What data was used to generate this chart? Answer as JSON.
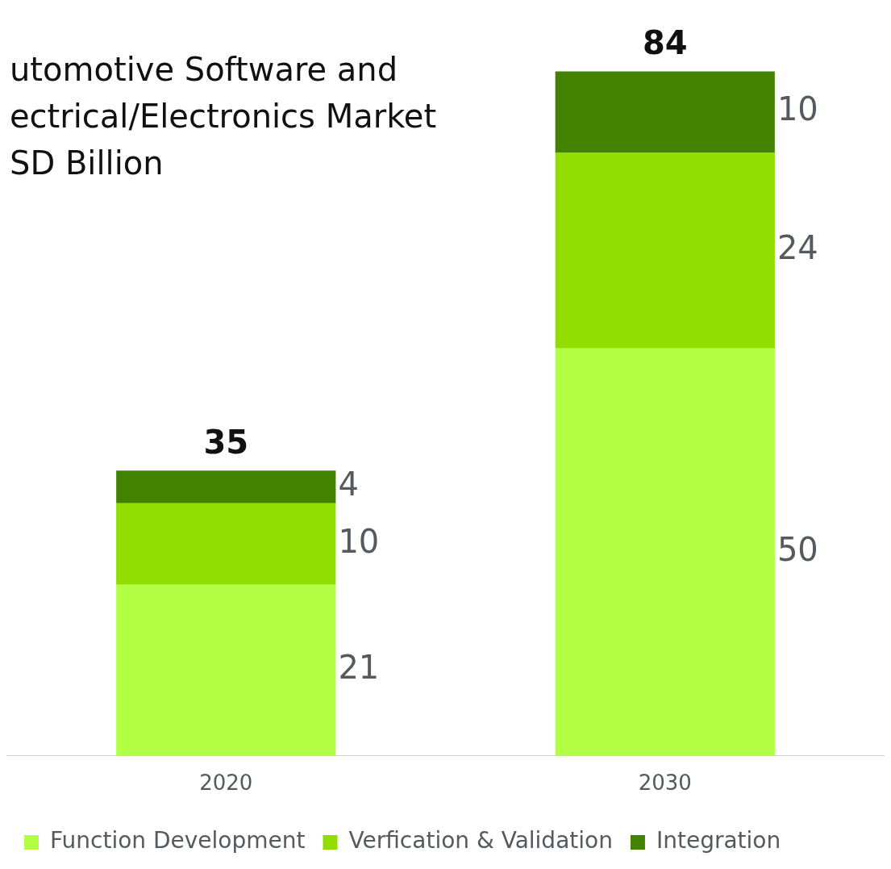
{
  "chart_data": {
    "type": "bar",
    "title": "utomotive Software and\nectrical/Electronics Market\nSD Billion",
    "categories": [
      "2020",
      "2030"
    ],
    "stacked": true,
    "data_labels": true,
    "legend": "bottom",
    "grid": false,
    "totals": [
      "35",
      "84"
    ],
    "series": [
      {
        "name": "Function Development",
        "color": "#b2ff45",
        "values": [
          21,
          50
        ]
      },
      {
        "name": "Verfication & Validation",
        "color": "#91dd00",
        "values": [
          10,
          24
        ]
      },
      {
        "name": "Integration",
        "color": "#438200",
        "values": [
          4,
          10
        ]
      }
    ]
  }
}
